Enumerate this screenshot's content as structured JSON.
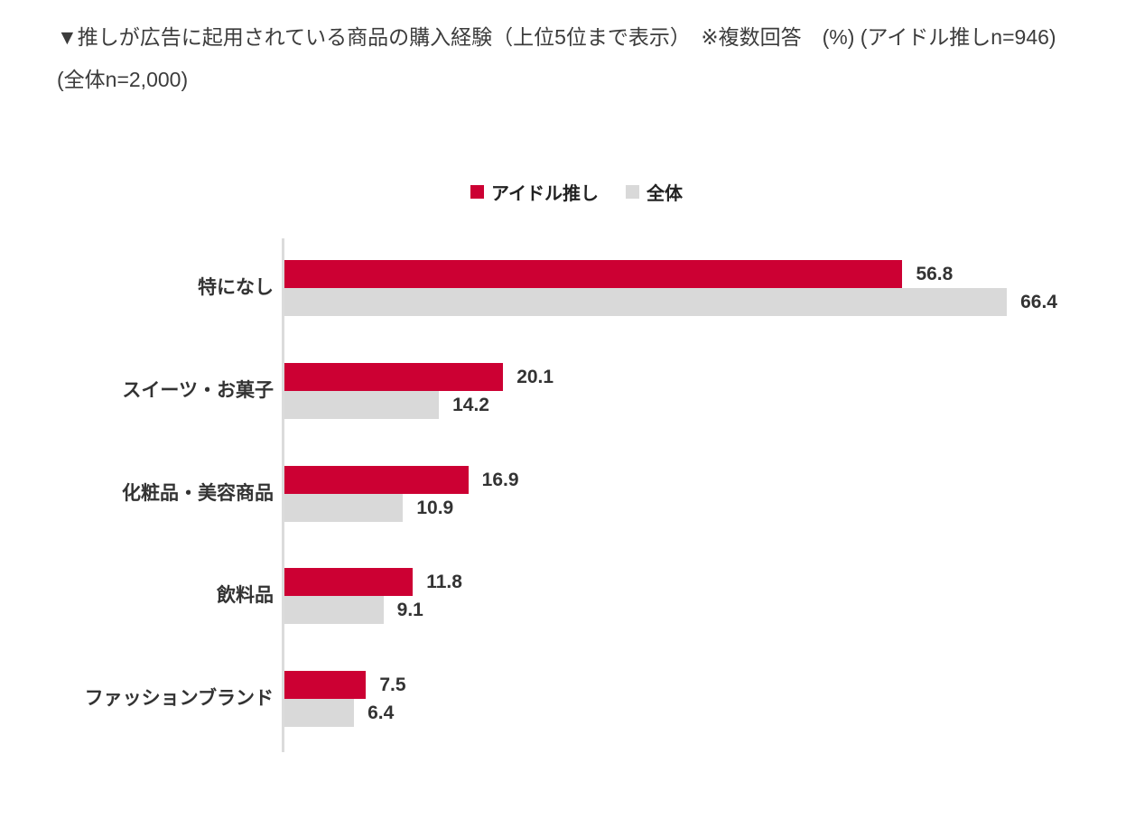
{
  "header": {
    "title": "▼推しが広告に起用されている商品の購入経験（上位5位まで表示）　※複数回答　(%) (アイドル推しn=946)(全体n=2,000)"
  },
  "legend": {
    "items": [
      {
        "label": "アイドル推し",
        "color": "#CC0033"
      },
      {
        "label": "全体",
        "color": "#D9D9D9"
      }
    ]
  },
  "chart_data": {
    "type": "bar",
    "orientation": "horizontal",
    "title": "推しが広告に起用されている商品の購入経験（上位5位まで表示）",
    "note": "※複数回答",
    "unit": "%",
    "sample_sizes": {
      "アイドル推し": "n=946",
      "全体": "n=2,000"
    },
    "categories": [
      "特になし",
      "スイーツ・お菓子",
      "化粧品・美容商品",
      "飲料品",
      "ファッションブランド"
    ],
    "series": [
      {
        "name": "アイドル推し",
        "key": "idol-fan",
        "color": "#CC0033",
        "values": [
          56.8,
          20.1,
          16.9,
          11.8,
          7.5
        ]
      },
      {
        "name": "全体",
        "key": "overall",
        "color": "#D9D9D9",
        "values": [
          66.4,
          14.2,
          10.9,
          9.1,
          6.4
        ]
      }
    ],
    "value_labels": true,
    "xlim": [
      0,
      70
    ],
    "grid": false,
    "legend_position": "top-center",
    "axis_color": "#DBDBDB",
    "text_color": "#333333"
  }
}
